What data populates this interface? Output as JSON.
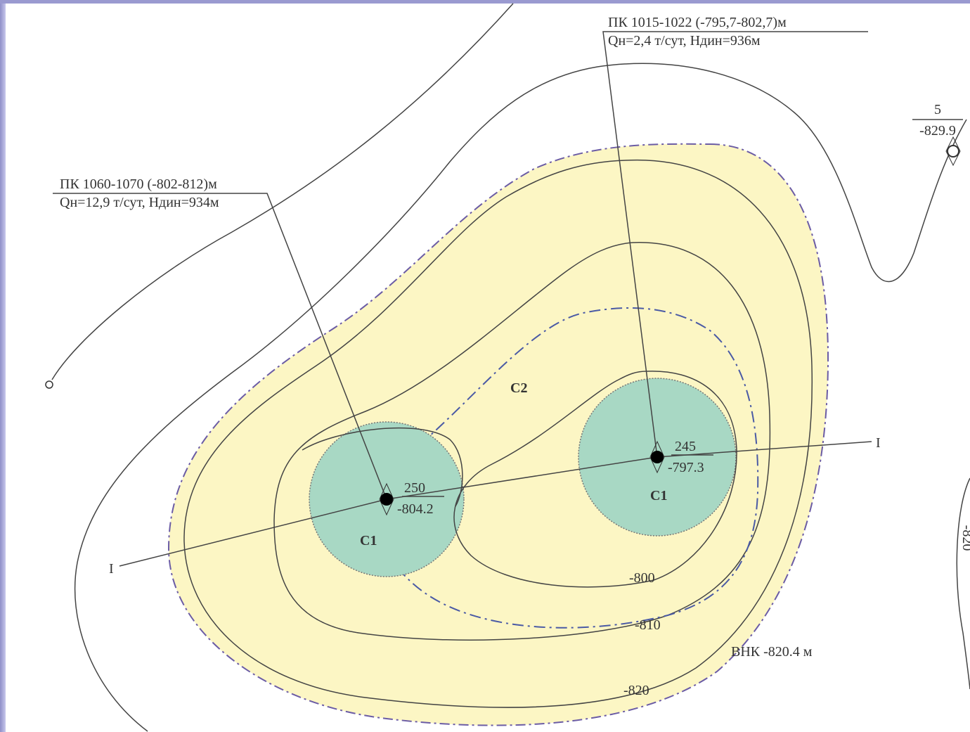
{
  "wells": [
    {
      "number": "250",
      "elevation": "-804.2",
      "category": "C1",
      "perforation": "ПК 1060-1070 (-802-812)м",
      "production": "Qн=12,9 т/сут, Hдин=934м"
    },
    {
      "number": "245",
      "elevation": "-797.3",
      "category": "C1",
      "perforation": "ПК 1015-1022 (-795,7-802,7)м",
      "production": "Qн=2,4 т/сут, Hдин=936м"
    },
    {
      "number": "5",
      "elevation": "-829.9"
    }
  ],
  "zone_label": "C2",
  "section_labels": [
    "I",
    "I"
  ],
  "contours": [
    "-800",
    "-810",
    "-820",
    "-820"
  ],
  "owc_label": "ВНК -820.4 м"
}
